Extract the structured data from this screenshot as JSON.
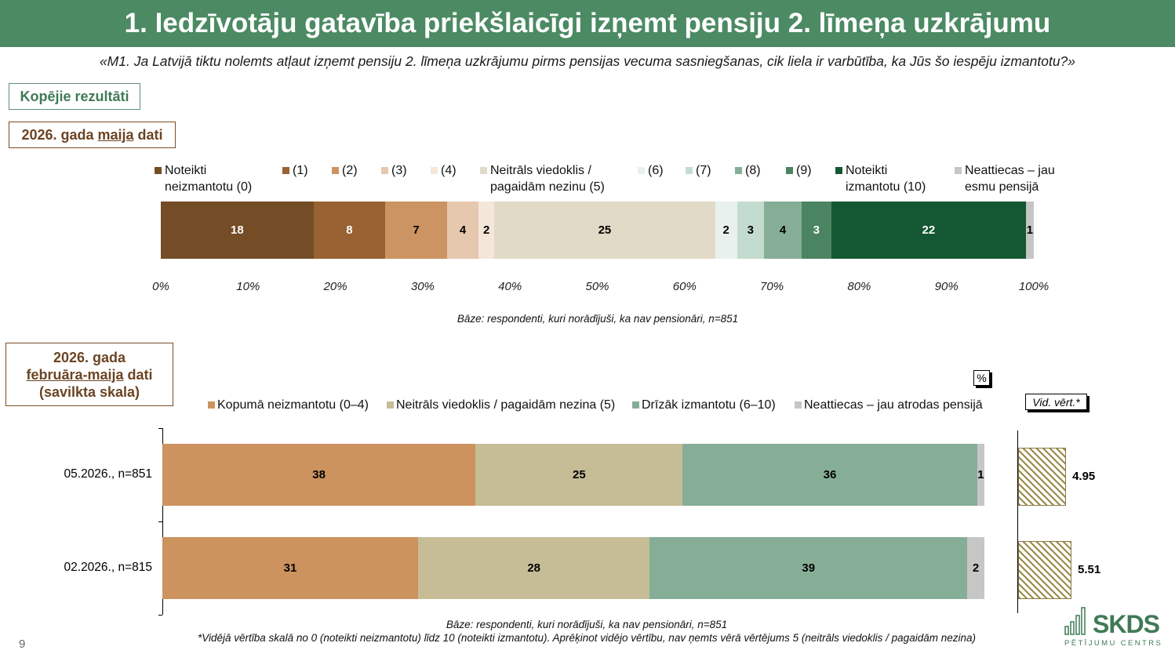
{
  "page": {
    "title": "1. Iedzīvotāju gatavība priekšlaicīgi izņemt pensiju 2. līmeņa uzkrājumu",
    "subtitle": "«M1. Ja Latvijā tiktu nolemts atļaut izņemt pensiju 2. līmeņa uzkrājumu pirms pensijas vecuma sasniegšanas, cik liela ir varbūtība, ka Jūs šo iespēju izmantotu?»",
    "total_results_label": "Kopējie rezultāti",
    "section1_label_pre": "2026. gada ",
    "section1_label_u": "maija",
    "section1_label_post": " dati",
    "section2_label_line1": "2026. gada",
    "section2_label_u": "februāra-maija",
    "section2_label_mid": " dati",
    "section2_label_line3": "(savilkta skala)",
    "percent_sign": "%",
    "avg_header": "Vid. vērt.*",
    "page_number": "9",
    "logo_main": "SKDS",
    "logo_sub": "PĒTĪJUMU CENTRS"
  },
  "chart_data": [
    {
      "type": "bar",
      "orientation": "horizontal-stacked-100",
      "legend": [
        {
          "label": "Noteikti neizmantotu (0)",
          "color": "#744c25"
        },
        {
          "label": "(1)",
          "color": "#986233"
        },
        {
          "label": "(2)",
          "color": "#cc9462"
        },
        {
          "label": "(3)",
          "color": "#e6c8ae"
        },
        {
          "label": "(4)",
          "color": "#f5e6da"
        },
        {
          "label": "Neitrāls viedoklis / pagaidām nezinu (5)",
          "color": "#e0dac6"
        },
        {
          "label": "(6)",
          "color": "#e9f1ee"
        },
        {
          "label": "(7)",
          "color": "#c4dccf"
        },
        {
          "label": "(8)",
          "color": "#86ae97"
        },
        {
          "label": "(9)",
          "color": "#4a8461"
        },
        {
          "label": "Noteikti izmantotu (10)",
          "color": "#135832"
        },
        {
          "label": "Neattiecas – jau esmu pensijā",
          "color": "#c6c6c6"
        }
      ],
      "legend_lines": [
        [
          "Noteikti",
          "neizmantotu (0)"
        ],
        [
          "(1)"
        ],
        [
          "(2)"
        ],
        [
          "(3)"
        ],
        [
          "(4)"
        ],
        [
          "Neitrāls viedoklis /",
          "pagaidām nezinu (5)"
        ],
        [
          "(6)"
        ],
        [
          "(7)"
        ],
        [
          "(8)"
        ],
        [
          "(9)"
        ],
        [
          "Noteikti",
          "izmantotu (10)"
        ],
        [
          "Neattiecas – jau",
          "esmu pensijā"
        ]
      ],
      "series_values": [
        18,
        8,
        7,
        4,
        2,
        25,
        2,
        3,
        4,
        3,
        22,
        1
      ],
      "widths_percent": [
        17.5,
        8.2,
        7.1,
        3.6,
        1.8,
        25.3,
        2.5,
        3.1,
        4.3,
        3.4,
        22.3,
        0.9
      ],
      "x_ticks": [
        "0%",
        "10%",
        "20%",
        "30%",
        "40%",
        "50%",
        "60%",
        "70%",
        "80%",
        "90%",
        "100%"
      ],
      "xlim": [
        0,
        100
      ],
      "base_note": "Bāze: respondenti, kuri norādījuši, ka nav pensionāri, n=851"
    },
    {
      "type": "bar",
      "orientation": "horizontal-stacked",
      "legend": [
        {
          "label": "Kopumā neizmantotu (0–4)",
          "color": "#cc935f"
        },
        {
          "label": "Neitrāls viedoklis / pagaidām nezina (5)",
          "color": "#c6bd97"
        },
        {
          "label": "Drīzāk izmantotu (6–10)",
          "color": "#86ae97"
        },
        {
          "label": "Neattiecas – jau atrodas pensijā",
          "color": "#c6c6c6"
        }
      ],
      "categories": [
        "05.2026., n=851",
        "02.2026., n=815"
      ],
      "series": [
        {
          "name": "Kopumā neizmantotu (0–4)",
          "values": [
            38,
            31
          ],
          "widths": [
            38.1,
            31.1
          ]
        },
        {
          "name": "Neitrāls viedoklis / pagaidām nezina (5)",
          "values": [
            25,
            28
          ],
          "widths": [
            25.2,
            28.2
          ]
        },
        {
          "name": "Drīzāk izmantotu (6–10)",
          "values": [
            36,
            39
          ],
          "widths": [
            35.8,
            38.6
          ]
        },
        {
          "name": "Neattiecas – jau atrodas pensijā",
          "values": [
            1,
            2
          ],
          "widths": [
            0.9,
            2.1
          ]
        }
      ],
      "averages": [
        4.95,
        5.51
      ],
      "base_note": "Bāze: respondenti, kuri norādījuši, ka nav pensionāri, n=851",
      "footnote": "*Vidējā vērtība skalā no 0 (noteikti neizmantotu) līdz 10 (noteikti izmantotu). Aprēķinot vidējo vērtību, nav ņemts vērā vērtējums 5 (neitrāls viedoklis / pagaidām nezina)"
    }
  ]
}
